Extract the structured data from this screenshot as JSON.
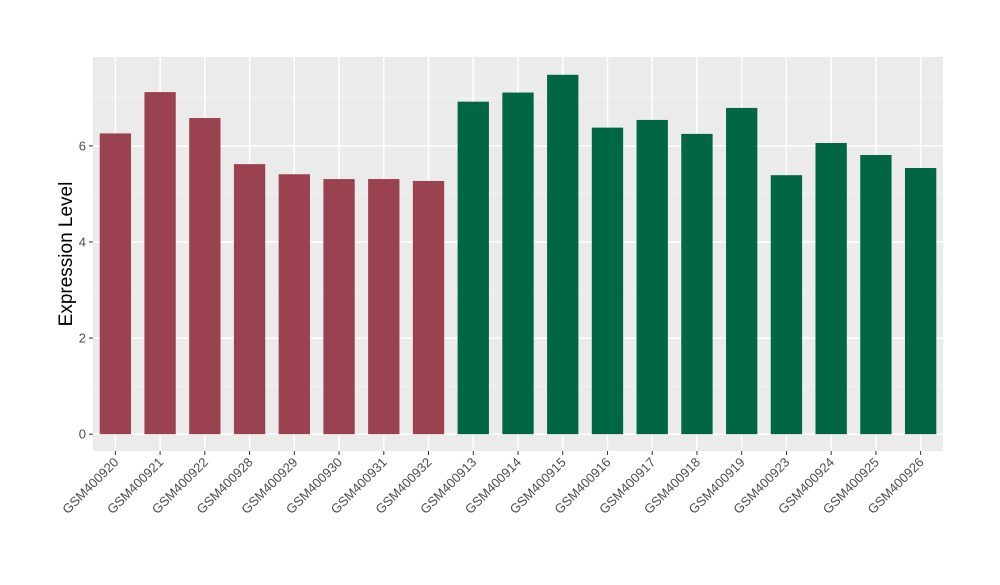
{
  "chart_data": {
    "type": "bar",
    "title": "",
    "xlabel": "",
    "ylabel": "Expression Level",
    "ylim": [
      -0.35,
      7.85
    ],
    "yticks": [
      0,
      2,
      4,
      6
    ],
    "grid": true,
    "legend": "none",
    "categories": [
      "GSM400920",
      "GSM400921",
      "GSM400922",
      "GSM400928",
      "GSM400929",
      "GSM400930",
      "GSM400931",
      "GSM400932",
      "GSM400913",
      "GSM400914",
      "GSM400915",
      "GSM400916",
      "GSM400917",
      "GSM400918",
      "GSM400919",
      "GSM400923",
      "GSM400924",
      "GSM400925",
      "GSM400926"
    ],
    "values": [
      6.26,
      7.12,
      6.58,
      5.62,
      5.41,
      5.31,
      5.31,
      5.27,
      6.92,
      7.11,
      7.48,
      6.38,
      6.54,
      6.25,
      6.79,
      5.39,
      6.06,
      5.81,
      5.54
    ],
    "groups": [
      0,
      0,
      0,
      0,
      0,
      0,
      0,
      0,
      1,
      1,
      1,
      1,
      1,
      1,
      1,
      1,
      1,
      1,
      1
    ],
    "colors": [
      "#9a4250",
      "#006644"
    ]
  }
}
